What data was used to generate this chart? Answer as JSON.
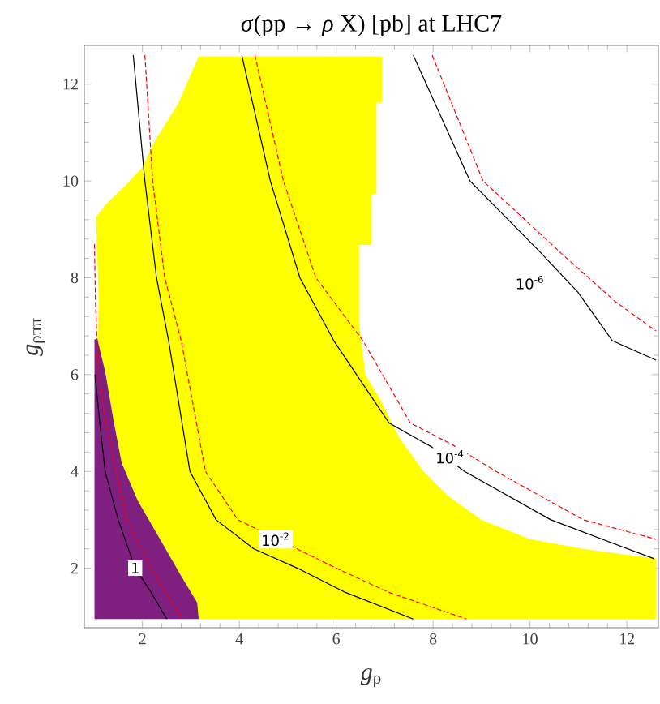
{
  "chart_data": {
    "type": "line",
    "title": "*σ*(pp → *ρ* X) [pb] at LHC7",
    "xlabel": "*g*$_{ρ}$",
    "ylabel": "*g*$_{ρππ}$",
    "xlim": [
      0.8,
      12.65
    ],
    "ylim": [
      0.77,
      12.8
    ],
    "xticks": [
      2,
      4,
      6,
      8,
      10,
      12
    ],
    "yticks": [
      2,
      4,
      6,
      8,
      10,
      12
    ],
    "series": [
      {
        "type": "area",
        "color": "#ffff00",
        "x": [
          3.16,
          3.13,
          2.8,
          2.35,
          1.9,
          1.57,
          1.4,
          1.23,
          1.07,
          1.1,
          1.04,
          1.23,
          1.74,
          2.01,
          2.24,
          2.74,
          2.91,
          3.16,
          6.95,
          6.95,
          6.83,
          6.83,
          6.73,
          6.73,
          6.47,
          6.47,
          6.6,
          6.9,
          7.3,
          7.8,
          8.3,
          9.0,
          10.0,
          11.1,
          12.6,
          12.6
        ],
        "values": [
          0.95,
          1.29,
          1.84,
          2.62,
          3.4,
          4.18,
          5.07,
          6.07,
          6.73,
          7.5,
          9.25,
          9.5,
          10.0,
          10.3,
          10.8,
          11.6,
          12.0,
          12.57,
          12.57,
          11.62,
          11.62,
          9.73,
          9.73,
          8.68,
          8.68,
          7.07,
          6.0,
          5.5,
          4.7,
          4.0,
          3.5,
          3.0,
          2.6,
          2.4,
          2.2,
          0.95
        ]
      },
      {
        "type": "area",
        "color": "#7f1f80",
        "x": [
          1.01,
          1.01,
          1.07,
          1.23,
          1.4,
          1.57,
          1.9,
          2.35,
          2.8,
          3.13,
          3.16
        ],
        "values": [
          0.95,
          6.73,
          6.73,
          6.07,
          5.07,
          4.18,
          3.4,
          2.62,
          1.84,
          1.29,
          0.95
        ]
      },
      {
        "color": "#000000",
        "line_style": "solid",
        "x": [
          1.02,
          1.12,
          1.23,
          1.5,
          1.85,
          2.18,
          2.5
        ],
        "values": [
          6.0,
          5.0,
          4.0,
          3.0,
          2.0,
          1.5,
          0.95
        ]
      },
      {
        "color": "#ff0000",
        "line_style": "dashed",
        "x": [
          1.01,
          1.03,
          1.09,
          1.25,
          1.46,
          1.68,
          2.17,
          2.83
        ],
        "values": [
          8.7,
          7.5,
          6.0,
          5.0,
          4.0,
          3.0,
          2.0,
          0.95
        ]
      },
      {
        "color": "#000000",
        "line_style": "solid",
        "x": [
          1.81,
          2.05,
          2.29,
          2.54,
          2.98,
          3.52,
          4.3,
          5.2,
          6.19,
          7.59
        ],
        "values": [
          12.6,
          10.0,
          8.0,
          6.7,
          4.0,
          3.0,
          2.4,
          2.0,
          1.5,
          0.95
        ]
      },
      {
        "color": "#ff0000",
        "line_style": "dashed",
        "x": [
          2.05,
          2.21,
          2.46,
          2.8,
          3.3,
          3.97,
          6.0,
          7.09,
          8.69
        ],
        "values": [
          12.6,
          10.0,
          8.0,
          6.7,
          4.0,
          3.0,
          2.0,
          1.5,
          0.95
        ]
      },
      {
        "color": "#000000",
        "line_style": "solid",
        "x": [
          4.05,
          4.64,
          5.25,
          5.95,
          7.09,
          7.98,
          8.65,
          10.43,
          12.55
        ],
        "values": [
          12.6,
          10.0,
          8.0,
          6.7,
          5.0,
          4.5,
          4.0,
          3.0,
          2.2
        ]
      },
      {
        "color": "#ff0000",
        "line_style": "dashed",
        "x": [
          4.32,
          4.91,
          5.58,
          6.55,
          7.53,
          8.4,
          9.3,
          11.1,
          12.6
        ],
        "values": [
          12.6,
          10.0,
          8.0,
          6.7,
          5.0,
          4.55,
          4.0,
          3.0,
          2.6
        ]
      },
      {
        "color": "#000000",
        "line_style": "solid",
        "x": [
          7.59,
          8.76,
          10.21,
          10.99,
          11.7,
          12.6
        ],
        "values": [
          12.6,
          10.0,
          8.53,
          7.7,
          6.7,
          6.3
        ]
      },
      {
        "color": "#ff0000",
        "line_style": "dashed",
        "x": [
          7.98,
          9.03,
          10.65,
          11.77,
          12.6
        ],
        "values": [
          12.6,
          10.0,
          8.5,
          7.5,
          6.9
        ]
      }
    ],
    "annotations": [
      {
        "text": "1",
        "x": 1.85,
        "y": 2.0
      },
      {
        "text": "10$^{-2}$",
        "x": 4.75,
        "y": 2.6
      },
      {
        "text": "10$^{-4}$",
        "x": 8.35,
        "y": 4.3
      },
      {
        "text": "10$^{-6}$",
        "x": 10.0,
        "y": 7.9
      }
    ]
  }
}
